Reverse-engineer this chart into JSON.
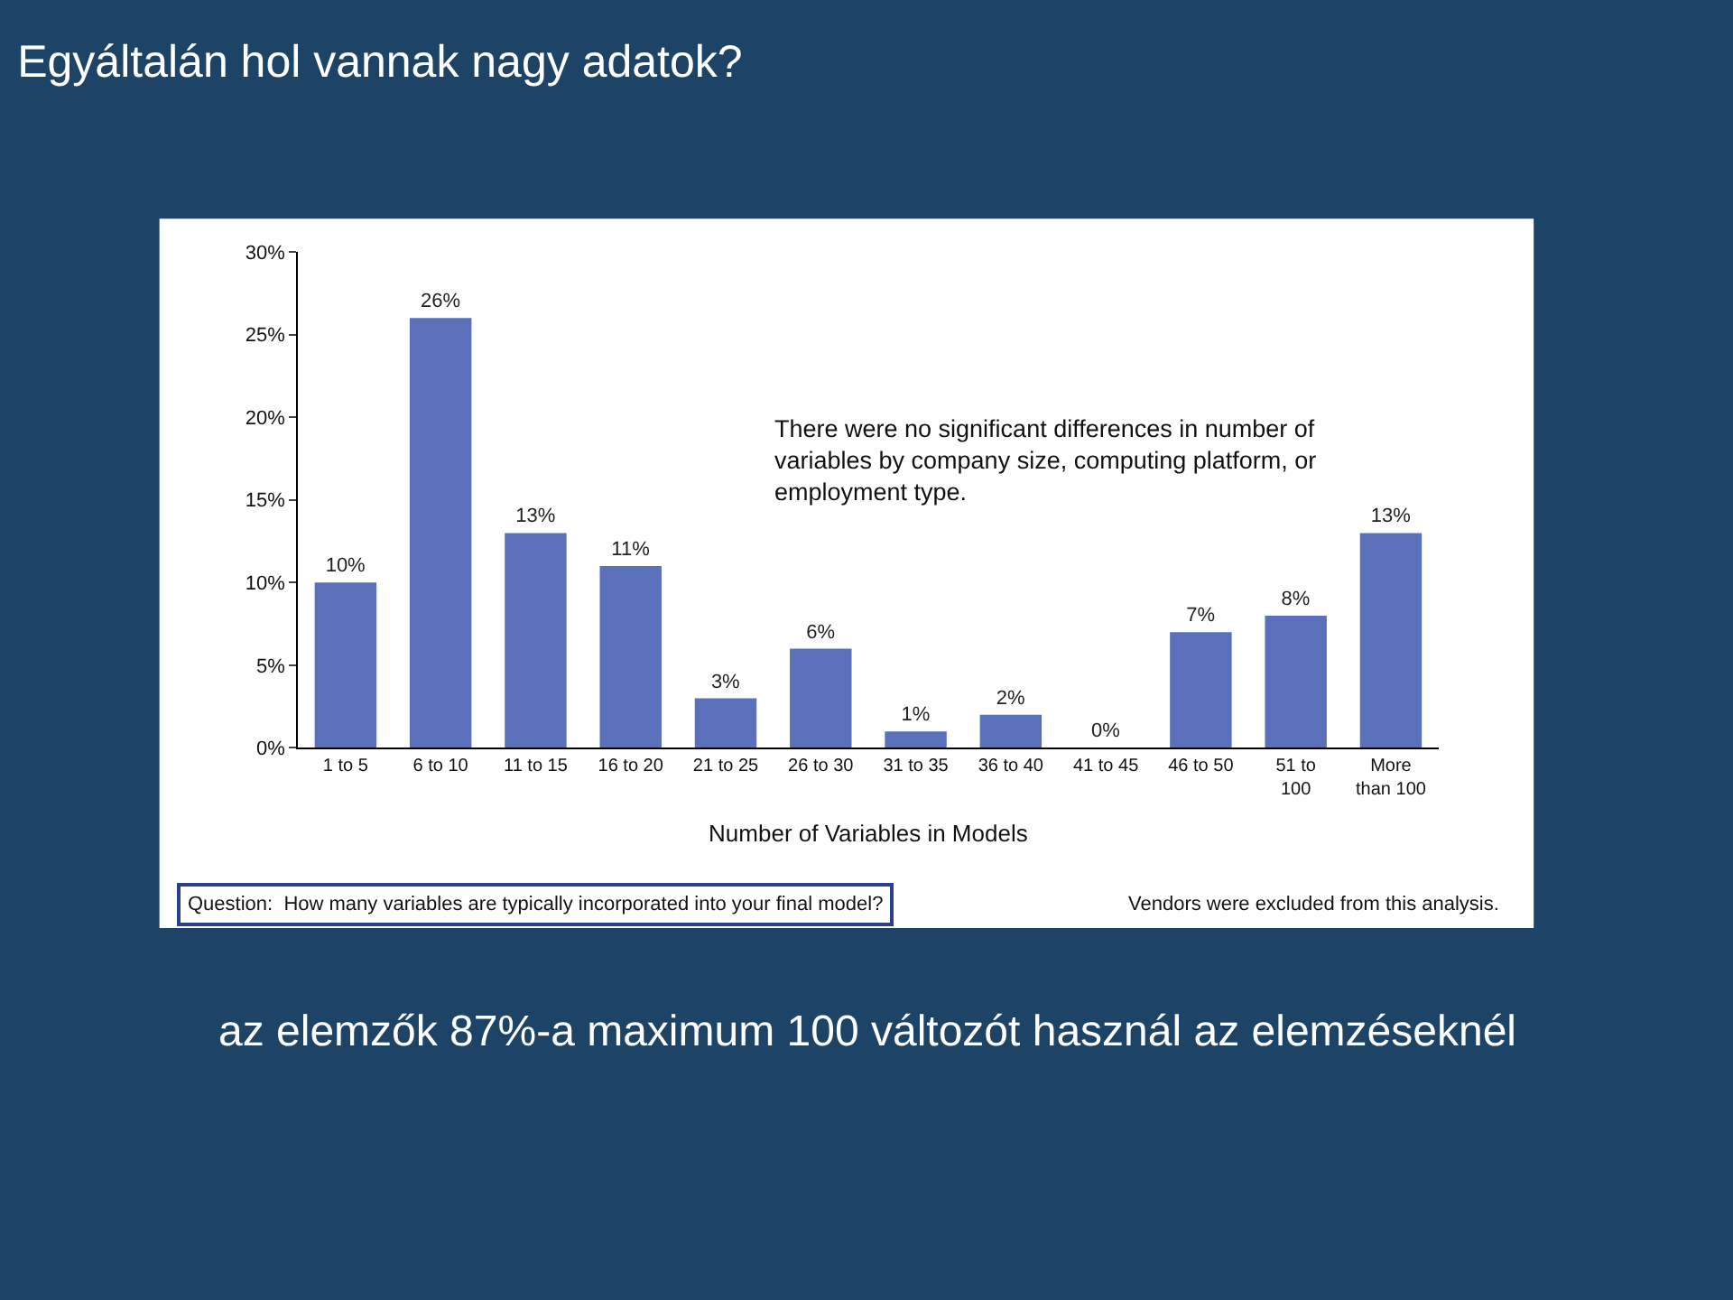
{
  "chart_data": {
    "type": "bar",
    "title": "Egyáltalán hol vannak nagy adatok?",
    "xlabel": "Number of Variables in Models",
    "categories": [
      "1 to 5",
      "6 to 10",
      "11 to 15",
      "16 to 20",
      "21 to 25",
      "26 to 30",
      "31 to 35",
      "36 to 40",
      "41 to 45",
      "46 to 50",
      "51 to 100",
      "More than 100"
    ],
    "values": [
      10,
      26,
      13,
      11,
      3,
      6,
      1,
      2,
      0,
      7,
      8,
      13
    ],
    "value_labels": [
      "10%",
      "26%",
      "13%",
      "11%",
      "3%",
      "6%",
      "1%",
      "2%",
      "0%",
      "7%",
      "8%",
      "13%"
    ],
    "color": "#5a70bb",
    "ylim": [
      0,
      30
    ],
    "yticks": [
      {
        "value": 0,
        "label": "0%"
      },
      {
        "value": 5,
        "label": "5%"
      },
      {
        "value": 10,
        "label": "10%"
      },
      {
        "value": 15,
        "label": "15%"
      },
      {
        "value": 20,
        "label": "20%"
      },
      {
        "value": 25,
        "label": "25%"
      },
      {
        "value": 30,
        "label": "30%"
      }
    ],
    "legend": false,
    "annotations": [
      "There were no significant differences in number of variables by company size, computing platform, or employment type.",
      "Question:  How many variables are typically incorporated into your final model?",
      "Vendors were excluded from this analysis.",
      "az elemzők 87%-a maximum 100 változót használ az elemzéseknél"
    ]
  }
}
